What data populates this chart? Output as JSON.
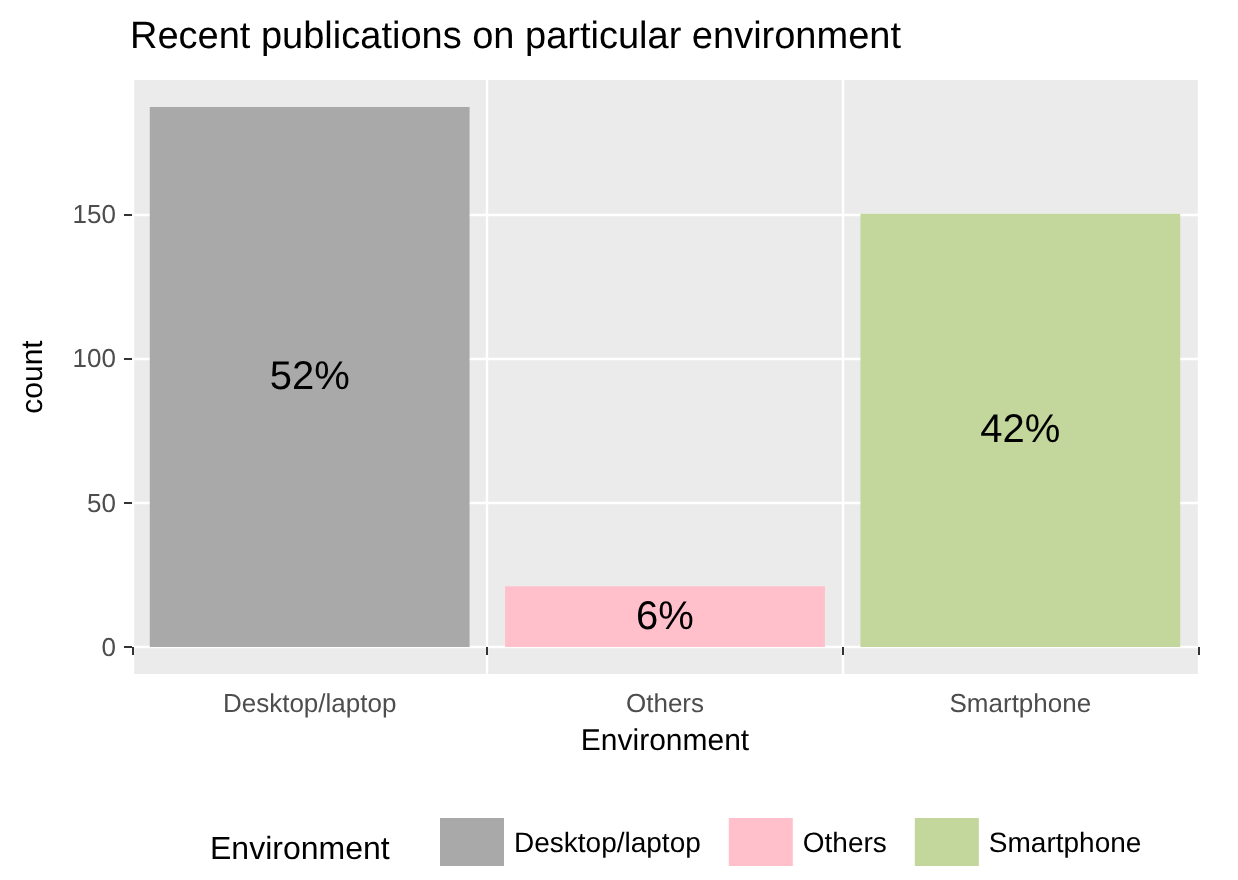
{
  "chart_data": {
    "type": "bar",
    "title": "Recent publications on particular environment",
    "xlabel": "Environment",
    "ylabel": "count",
    "legend_title": "Environment",
    "categories": [
      "Desktop/laptop",
      "Others",
      "Smartphone"
    ],
    "series": [
      {
        "name": "Desktop/laptop",
        "color": "#a9a9a9",
        "values": [
          187,
          null,
          null
        ]
      },
      {
        "name": "Others",
        "color": "#ffc0cb",
        "values": [
          null,
          21,
          null
        ]
      },
      {
        "name": "Smartphone",
        "color": "#c3d69b",
        "values": [
          null,
          null,
          150
        ]
      }
    ],
    "annotations": [
      "52%",
      "6%",
      "42%"
    ],
    "ylim": [
      -9.35,
      196.35
    ],
    "yticks": [
      0,
      50,
      100,
      150
    ],
    "grid": true,
    "legend": "bottom"
  }
}
